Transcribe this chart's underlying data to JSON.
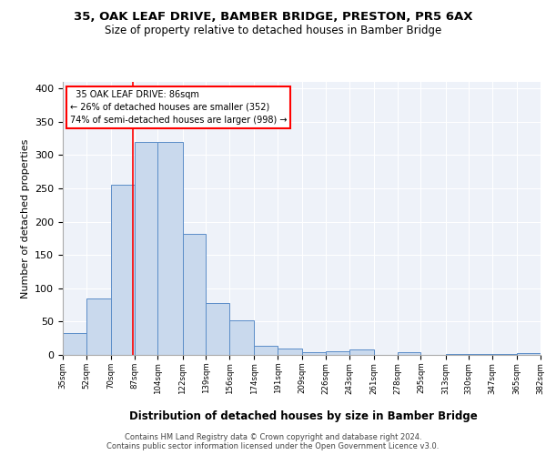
{
  "title1": "35, OAK LEAF DRIVE, BAMBER BRIDGE, PRESTON, PR5 6AX",
  "title2": "Size of property relative to detached houses in Bamber Bridge",
  "xlabel": "Distribution of detached houses by size in Bamber Bridge",
  "ylabel": "Number of detached properties",
  "bar_color": "#c9d9ed",
  "bar_edge_color": "#5b8dc8",
  "bg_color": "#eef2f9",
  "grid_color": "white",
  "red_line_x": 86,
  "annotation_text": "  35 OAK LEAF DRIVE: 86sqm  \n← 26% of detached houses are smaller (352)\n74% of semi-detached houses are larger (998) →",
  "footer": "Contains HM Land Registry data © Crown copyright and database right 2024.\nContains public sector information licensed under the Open Government Licence v3.0.",
  "bin_edges": [
    35,
    52,
    70,
    87,
    104,
    122,
    139,
    156,
    174,
    191,
    209,
    226,
    243,
    261,
    278,
    295,
    313,
    330,
    347,
    365,
    382
  ],
  "bin_counts": [
    33,
    85,
    255,
    320,
    320,
    182,
    78,
    52,
    13,
    10,
    4,
    6,
    8,
    0,
    4,
    0,
    2,
    1,
    1,
    3
  ],
  "yticks": [
    0,
    50,
    100,
    150,
    200,
    250,
    300,
    350,
    400
  ],
  "ylim": [
    0,
    410
  ]
}
